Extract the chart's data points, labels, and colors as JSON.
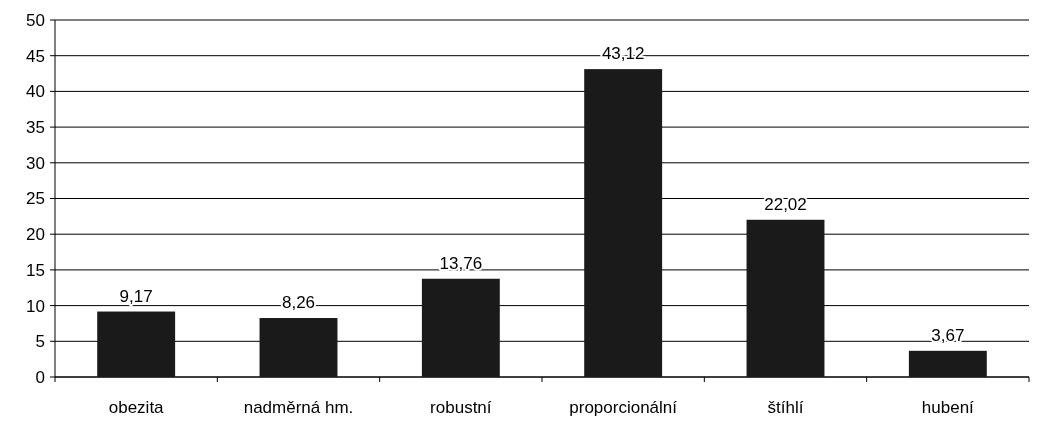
{
  "chart_data": {
    "type": "bar",
    "categories": [
      "obezita",
      "nadměrná hm.",
      "robustní",
      "proporcionální",
      "štíhlí",
      "hubení"
    ],
    "values": [
      9.17,
      8.26,
      13.76,
      43.12,
      22.02,
      3.67
    ],
    "value_labels": [
      "9,17",
      "8,26",
      "13,76",
      "43,12",
      "22,02",
      "3,67"
    ],
    "color": "#1a1a1a",
    "ylim": [
      0,
      50
    ],
    "yticks": [
      0,
      5,
      10,
      15,
      20,
      25,
      30,
      35,
      40,
      45,
      50
    ],
    "grid": "y"
  }
}
